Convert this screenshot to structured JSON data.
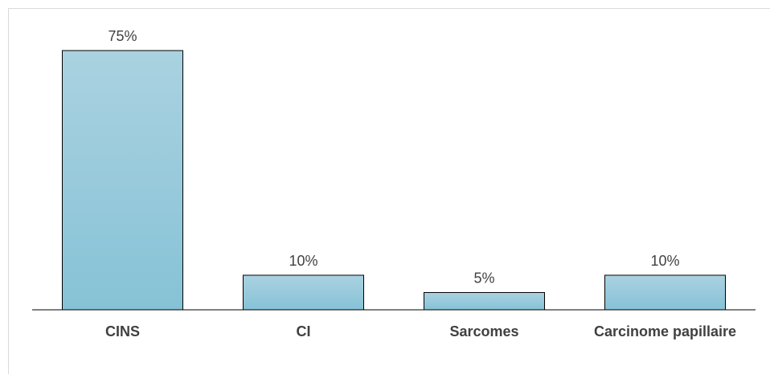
{
  "chart_data": {
    "type": "bar",
    "categories": [
      "CINS",
      "CI",
      "Sarcomes",
      "Carcinome papillaire"
    ],
    "values": [
      75,
      10,
      5,
      10
    ],
    "value_labels": [
      "75%",
      "10%",
      "5%",
      "10%"
    ],
    "color": "#97c9dc"
  }
}
